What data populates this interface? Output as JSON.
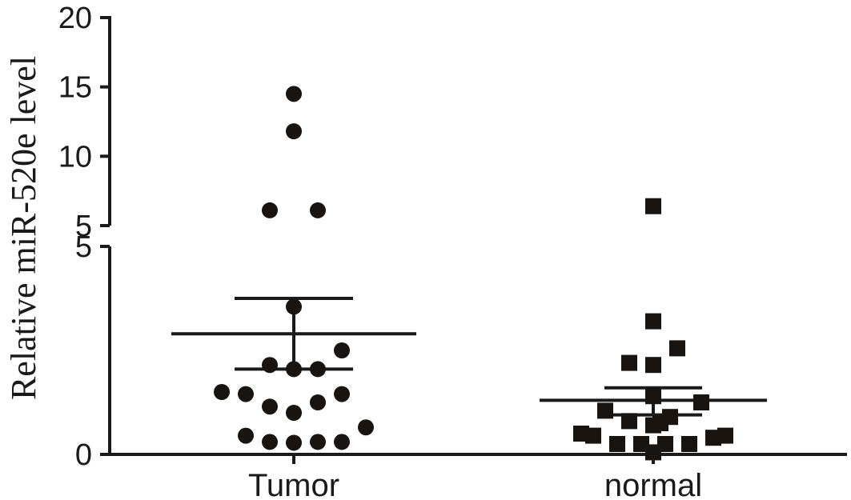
{
  "chart_data": {
    "type": "scatter",
    "title": "",
    "xlabel": "",
    "ylabel": "Relative  miR-520e  level",
    "categories": [
      "Tumor",
      "normal"
    ],
    "y_axis": {
      "broken": true,
      "lower_segment": {
        "range": [
          0,
          5
        ],
        "tick_labels": [
          "0",
          "5"
        ]
      },
      "upper_segment": {
        "range": [
          5,
          20
        ],
        "tick_labels": [
          "5",
          "10",
          "15",
          "20"
        ]
      }
    },
    "color": "#1a1410",
    "series": [
      {
        "category": "Tumor",
        "marker": "circle",
        "mean": 2.9,
        "sem_low": 2.05,
        "sem_high": 3.75,
        "points": [
          {
            "y": 14.5,
            "jitter": 0
          },
          {
            "y": 11.8,
            "jitter": 0
          },
          {
            "y": 6.1,
            "jitter": -1
          },
          {
            "y": 6.1,
            "jitter": 1
          },
          {
            "y": 3.55,
            "jitter": 0
          },
          {
            "y": 2.5,
            "jitter": 2
          },
          {
            "y": 2.15,
            "jitter": -1
          },
          {
            "y": 2.05,
            "jitter": 0
          },
          {
            "y": 2.05,
            "jitter": 1
          },
          {
            "y": 1.5,
            "jitter": -3
          },
          {
            "y": 1.45,
            "jitter": -2
          },
          {
            "y": 1.45,
            "jitter": 2
          },
          {
            "y": 1.25,
            "jitter": 1
          },
          {
            "y": 1.15,
            "jitter": -1
          },
          {
            "y": 1.0,
            "jitter": 0
          },
          {
            "y": 0.65,
            "jitter": 3
          },
          {
            "y": 0.45,
            "jitter": -2
          },
          {
            "y": 0.3,
            "jitter": -1
          },
          {
            "y": 0.28,
            "jitter": 0
          },
          {
            "y": 0.3,
            "jitter": 1
          },
          {
            "y": 0.3,
            "jitter": 2
          }
        ]
      },
      {
        "category": "normal",
        "marker": "square",
        "mean": 1.3,
        "sem_low": 0.95,
        "sem_high": 1.6,
        "points": [
          {
            "y": 6.4,
            "jitter": 0
          },
          {
            "y": 3.2,
            "jitter": 0
          },
          {
            "y": 2.55,
            "jitter": 1
          },
          {
            "y": 2.2,
            "jitter": -1
          },
          {
            "y": 2.15,
            "jitter": 0
          },
          {
            "y": 1.4,
            "jitter": 0
          },
          {
            "y": 1.25,
            "jitter": 2
          },
          {
            "y": 1.05,
            "jitter": -2
          },
          {
            "y": 0.9,
            "jitter": 0.7
          },
          {
            "y": 0.8,
            "jitter": -1
          },
          {
            "y": 0.75,
            "jitter": 0.3
          },
          {
            "y": 0.7,
            "jitter": 0
          },
          {
            "y": 0.5,
            "jitter": -3
          },
          {
            "y": 0.45,
            "jitter": -2.5
          },
          {
            "y": 0.4,
            "jitter": 2.5
          },
          {
            "y": 0.45,
            "jitter": 3
          },
          {
            "y": 0.25,
            "jitter": -1.5
          },
          {
            "y": 0.25,
            "jitter": -0.5
          },
          {
            "y": 0.25,
            "jitter": 0.5
          },
          {
            "y": 0.25,
            "jitter": 1.5
          },
          {
            "y": 0.05,
            "jitter": 0
          }
        ]
      }
    ]
  }
}
